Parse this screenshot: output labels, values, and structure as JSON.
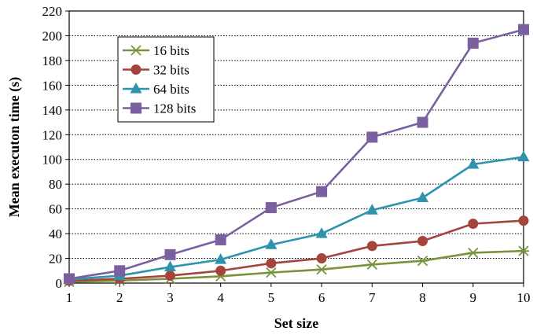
{
  "chart_data": {
    "type": "line",
    "title": "",
    "xlabel": "Set size",
    "ylabel": "Mean executon time (s)",
    "x": [
      1,
      2,
      3,
      4,
      5,
      6,
      7,
      8,
      9,
      10
    ],
    "xlim": [
      1,
      10
    ],
    "ylim": [
      0,
      220
    ],
    "y_ticks": [
      0,
      20,
      40,
      60,
      80,
      100,
      120,
      140,
      160,
      180,
      200,
      220
    ],
    "grid": "horizontal dotted",
    "legend_position": "top-left",
    "series": [
      {
        "name": "16 bits",
        "color": "#77933c",
        "marker": "asterisk",
        "values": [
          1,
          2,
          3.5,
          5.5,
          8.5,
          11,
          15,
          18,
          24.5,
          26
        ]
      },
      {
        "name": "32 bits",
        "color": "#a5443c",
        "marker": "circle",
        "values": [
          2,
          3.5,
          6,
          10,
          16,
          20,
          30,
          34,
          48,
          50.5
        ]
      },
      {
        "name": "64 bits",
        "color": "#2e93ad",
        "marker": "triangle",
        "values": [
          3,
          6,
          13,
          19,
          31,
          40,
          59,
          69,
          96,
          102
        ]
      },
      {
        "name": "128 bits",
        "color": "#7b60a0",
        "marker": "square",
        "values": [
          3.5,
          10,
          23,
          35,
          61,
          74,
          118,
          130,
          194,
          205
        ]
      }
    ]
  }
}
